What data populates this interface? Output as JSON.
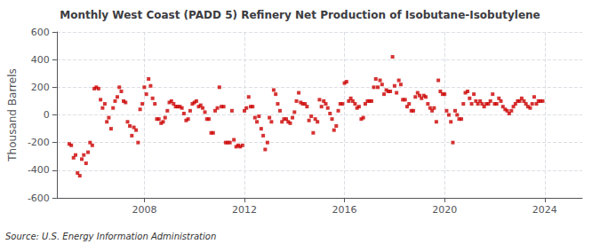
{
  "chart_data": {
    "type": "scatter",
    "title": "Monthly West Coast (PADD 5) Refinery Net Production of Isobutane-Isobutylene",
    "ylabel": "Thousand Barrels",
    "annotations": [
      "Source: U.S. Energy Information Administration"
    ],
    "color": "#cc0000",
    "marker": "square",
    "grid": true,
    "xlim": [
      2004.5,
      2025.5
    ],
    "xticks": [
      2008,
      2012,
      2016,
      2020,
      2024
    ],
    "ylim": [
      -600,
      600
    ],
    "yticks": [
      -600,
      -400,
      -200,
      0,
      200,
      400,
      600
    ],
    "x": [
      2005.0,
      2005.08,
      2005.17,
      2005.25,
      2005.33,
      2005.42,
      2005.5,
      2005.58,
      2005.67,
      2005.75,
      2005.83,
      2005.92,
      2006.0,
      2006.08,
      2006.17,
      2006.25,
      2006.33,
      2006.42,
      2006.5,
      2006.58,
      2006.67,
      2006.75,
      2006.83,
      2006.92,
      2007.0,
      2007.08,
      2007.17,
      2007.25,
      2007.33,
      2007.42,
      2007.5,
      2007.58,
      2007.67,
      2007.75,
      2007.83,
      2007.92,
      2008.0,
      2008.08,
      2008.17,
      2008.25,
      2008.33,
      2008.42,
      2008.5,
      2008.58,
      2008.67,
      2008.75,
      2008.83,
      2008.92,
      2009.0,
      2009.08,
      2009.17,
      2009.25,
      2009.33,
      2009.42,
      2009.5,
      2009.58,
      2009.67,
      2009.75,
      2009.83,
      2009.92,
      2010.0,
      2010.08,
      2010.17,
      2010.25,
      2010.33,
      2010.42,
      2010.5,
      2010.58,
      2010.67,
      2010.75,
      2010.83,
      2010.92,
      2011.0,
      2011.08,
      2011.17,
      2011.25,
      2011.33,
      2011.42,
      2011.5,
      2011.58,
      2011.67,
      2011.75,
      2011.83,
      2011.92,
      2012.0,
      2012.08,
      2012.17,
      2012.25,
      2012.33,
      2012.42,
      2012.5,
      2012.58,
      2012.67,
      2012.75,
      2012.83,
      2012.92,
      2013.0,
      2013.08,
      2013.17,
      2013.25,
      2013.33,
      2013.42,
      2013.5,
      2013.58,
      2013.67,
      2013.75,
      2013.83,
      2013.92,
      2014.0,
      2014.08,
      2014.17,
      2014.25,
      2014.33,
      2014.42,
      2014.5,
      2014.58,
      2014.67,
      2014.75,
      2014.83,
      2014.92,
      2015.0,
      2015.08,
      2015.17,
      2015.25,
      2015.33,
      2015.42,
      2015.5,
      2015.58,
      2015.67,
      2015.75,
      2015.83,
      2015.92,
      2016.0,
      2016.08,
      2016.17,
      2016.25,
      2016.33,
      2016.42,
      2016.5,
      2016.58,
      2016.67,
      2016.75,
      2016.83,
      2016.92,
      2017.0,
      2017.08,
      2017.17,
      2017.25,
      2017.33,
      2017.42,
      2017.5,
      2017.58,
      2017.67,
      2017.75,
      2017.83,
      2017.92,
      2018.0,
      2018.08,
      2018.17,
      2018.25,
      2018.33,
      2018.42,
      2018.5,
      2018.58,
      2018.67,
      2018.75,
      2018.83,
      2018.92,
      2019.0,
      2019.08,
      2019.17,
      2019.25,
      2019.33,
      2019.42,
      2019.5,
      2019.58,
      2019.67,
      2019.75,
      2019.83,
      2019.92,
      2020.0,
      2020.08,
      2020.17,
      2020.25,
      2020.33,
      2020.42,
      2020.5,
      2020.58,
      2020.67,
      2020.75,
      2020.83,
      2020.92,
      2021.0,
      2021.08,
      2021.17,
      2021.25,
      2021.33,
      2021.42,
      2021.5,
      2021.58,
      2021.67,
      2021.75,
      2021.83,
      2021.92,
      2022.0,
      2022.08,
      2022.17,
      2022.25,
      2022.33,
      2022.42,
      2022.5,
      2022.58,
      2022.67,
      2022.75,
      2022.83,
      2022.92,
      2023.0,
      2023.08,
      2023.17,
      2023.25,
      2023.33,
      2023.42,
      2023.5,
      2023.58,
      2023.67,
      2023.75,
      2023.83,
      2023.92
    ],
    "values": [
      -210,
      -220,
      -310,
      -290,
      -420,
      -440,
      -320,
      -290,
      -350,
      -270,
      -200,
      -220,
      190,
      200,
      190,
      110,
      50,
      80,
      -50,
      -20,
      -100,
      50,
      100,
      130,
      200,
      170,
      100,
      90,
      -50,
      -80,
      -150,
      -90,
      -110,
      -200,
      40,
      80,
      200,
      150,
      260,
      210,
      120,
      80,
      -30,
      -30,
      -60,
      -50,
      -20,
      30,
      90,
      100,
      80,
      60,
      60,
      60,
      50,
      10,
      -40,
      -30,
      30,
      80,
      90,
      100,
      60,
      70,
      50,
      20,
      -30,
      -30,
      -130,
      -130,
      30,
      50,
      200,
      60,
      60,
      -200,
      -200,
      -200,
      30,
      -180,
      -230,
      -220,
      -230,
      -220,
      30,
      50,
      130,
      60,
      60,
      -20,
      -50,
      -10,
      -100,
      -150,
      -250,
      -200,
      -20,
      -50,
      180,
      150,
      80,
      30,
      -50,
      -30,
      -30,
      -50,
      -60,
      -20,
      20,
      100,
      160,
      90,
      80,
      80,
      60,
      -40,
      -10,
      -130,
      -30,
      -50,
      110,
      60,
      100,
      80,
      50,
      10,
      -30,
      -110,
      -80,
      30,
      80,
      80,
      230,
      240,
      100,
      120,
      100,
      80,
      50,
      60,
      -30,
      -20,
      80,
      100,
      100,
      100,
      200,
      260,
      200,
      250,
      220,
      150,
      180,
      170,
      170,
      420,
      210,
      160,
      250,
      220,
      110,
      110,
      60,
      80,
      30,
      30,
      130,
      160,
      140,
      120,
      140,
      130,
      80,
      50,
      30,
      50,
      -50,
      250,
      170,
      150,
      150,
      30,
      0,
      -50,
      -200,
      30,
      0,
      -30,
      -30,
      80,
      160,
      170,
      120,
      80,
      150,
      100,
      80,
      100,
      80,
      60,
      80,
      80,
      100,
      150,
      80,
      80,
      120,
      100,
      60,
      40,
      30,
      10,
      30,
      60,
      80,
      100,
      100,
      120,
      100,
      80,
      60,
      50,
      80,
      130,
      80,
      100,
      100,
      100
    ]
  }
}
